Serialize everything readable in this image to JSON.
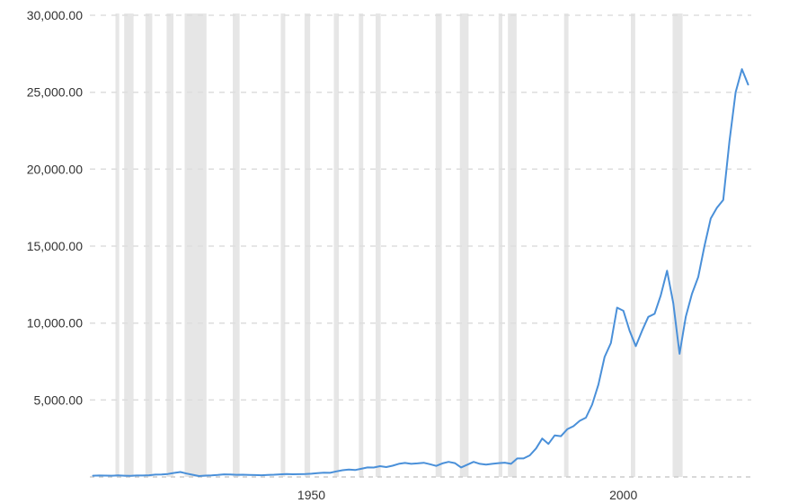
{
  "chart_data": {
    "type": "line",
    "title": "",
    "xlabel": "",
    "ylabel": "",
    "xlim": [
      1914.5,
      2020.5
    ],
    "ylim": [
      0,
      30000
    ],
    "grid": {
      "horizontal": true,
      "vertical": false,
      "style": "dashed"
    },
    "legend": "none",
    "y_ticks": [
      {
        "value": 5000,
        "label": "5,000.00"
      },
      {
        "value": 10000,
        "label": "10,000.00"
      },
      {
        "value": 15000,
        "label": "15,000.00"
      },
      {
        "value": 20000,
        "label": "20,000.00"
      },
      {
        "value": 25000,
        "label": "25,000.00"
      },
      {
        "value": 30000,
        "label": "30,000.00"
      }
    ],
    "x_ticks": [
      {
        "value": 1950,
        "label": "1950"
      },
      {
        "value": 2000,
        "label": "2000"
      }
    ],
    "recessions": [
      [
        1918.6,
        1919.2
      ],
      [
        1920.0,
        1921.5
      ],
      [
        1923.4,
        1924.5
      ],
      [
        1926.8,
        1927.9
      ],
      [
        1929.7,
        1933.2
      ],
      [
        1937.4,
        1938.5
      ],
      [
        1945.1,
        1945.8
      ],
      [
        1948.9,
        1949.8
      ],
      [
        1953.6,
        1954.4
      ],
      [
        1957.6,
        1958.3
      ],
      [
        1960.3,
        1961.1
      ],
      [
        1969.9,
        1970.9
      ],
      [
        1973.8,
        1975.2
      ],
      [
        1980.0,
        1980.6
      ],
      [
        1981.5,
        1982.9
      ],
      [
        1990.5,
        1991.2
      ],
      [
        2001.2,
        2001.9
      ],
      [
        2007.9,
        2009.5
      ]
    ],
    "series": [
      {
        "color": "#4a90d9",
        "points": [
          [
            1915,
            80
          ],
          [
            1916,
            95
          ],
          [
            1917,
            85
          ],
          [
            1918,
            80
          ],
          [
            1919,
            100
          ],
          [
            1920,
            80
          ],
          [
            1921,
            70
          ],
          [
            1922,
            95
          ],
          [
            1923,
            95
          ],
          [
            1924,
            110
          ],
          [
            1925,
            150
          ],
          [
            1926,
            155
          ],
          [
            1927,
            190
          ],
          [
            1928,
            260
          ],
          [
            1929,
            320
          ],
          [
            1930,
            220
          ],
          [
            1931,
            140
          ],
          [
            1932,
            60
          ],
          [
            1933,
            90
          ],
          [
            1934,
            100
          ],
          [
            1935,
            130
          ],
          [
            1936,
            170
          ],
          [
            1937,
            160
          ],
          [
            1938,
            140
          ],
          [
            1939,
            145
          ],
          [
            1940,
            135
          ],
          [
            1941,
            120
          ],
          [
            1942,
            110
          ],
          [
            1943,
            135
          ],
          [
            1944,
            145
          ],
          [
            1945,
            170
          ],
          [
            1946,
            185
          ],
          [
            1947,
            175
          ],
          [
            1948,
            180
          ],
          [
            1949,
            185
          ],
          [
            1950,
            210
          ],
          [
            1951,
            250
          ],
          [
            1952,
            275
          ],
          [
            1953,
            270
          ],
          [
            1954,
            360
          ],
          [
            1955,
            440
          ],
          [
            1956,
            480
          ],
          [
            1957,
            450
          ],
          [
            1958,
            530
          ],
          [
            1959,
            620
          ],
          [
            1960,
            610
          ],
          [
            1961,
            700
          ],
          [
            1962,
            640
          ],
          [
            1963,
            730
          ],
          [
            1964,
            850
          ],
          [
            1965,
            910
          ],
          [
            1966,
            850
          ],
          [
            1967,
            880
          ],
          [
            1968,
            920
          ],
          [
            1969,
            830
          ],
          [
            1970,
            720
          ],
          [
            1971,
            880
          ],
          [
            1972,
            980
          ],
          [
            1973,
            900
          ],
          [
            1974,
            620
          ],
          [
            1975,
            800
          ],
          [
            1976,
            980
          ],
          [
            1977,
            850
          ],
          [
            1978,
            800
          ],
          [
            1979,
            850
          ],
          [
            1980,
            900
          ],
          [
            1981,
            930
          ],
          [
            1982,
            850
          ],
          [
            1983,
            1200
          ],
          [
            1984,
            1200
          ],
          [
            1985,
            1400
          ],
          [
            1986,
            1850
          ],
          [
            1987,
            2500
          ],
          [
            1988,
            2150
          ],
          [
            1989,
            2700
          ],
          [
            1990,
            2650
          ],
          [
            1991,
            3100
          ],
          [
            1992,
            3300
          ],
          [
            1993,
            3650
          ],
          [
            1994,
            3850
          ],
          [
            1995,
            4700
          ],
          [
            1996,
            6000
          ],
          [
            1997,
            7800
          ],
          [
            1998,
            8700
          ],
          [
            1999,
            11000
          ],
          [
            2000,
            10800
          ],
          [
            2001,
            9500
          ],
          [
            2002,
            8500
          ],
          [
            2003,
            9500
          ],
          [
            2004,
            10400
          ],
          [
            2005,
            10600
          ],
          [
            2006,
            11800
          ],
          [
            2007,
            13400
          ],
          [
            2008,
            11300
          ],
          [
            2009,
            8000
          ],
          [
            2010,
            10400
          ],
          [
            2011,
            11900
          ],
          [
            2012,
            13000
          ],
          [
            2013,
            15000
          ],
          [
            2014,
            16800
          ],
          [
            2015,
            17500
          ],
          [
            2016,
            18000
          ],
          [
            2017,
            21800
          ],
          [
            2018,
            25000
          ],
          [
            2019,
            26500
          ],
          [
            2020,
            25500
          ]
        ]
      }
    ]
  }
}
